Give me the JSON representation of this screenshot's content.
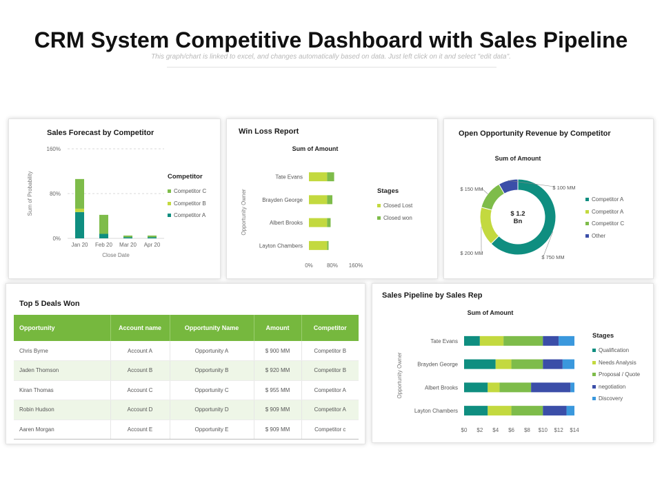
{
  "header": {
    "title": "CRM System Competitive Dashboard with Sales Pipeline",
    "subtitle": "This graph/chart is linked to excel, and changes automatically based on data. Just left click on it and select \"edit data\"."
  },
  "colors": {
    "dark_teal": "#0f8e80",
    "lime": "#c3d93f",
    "green": "#7ebc4a",
    "navy": "#3b4ea8",
    "blue": "#3a98dd",
    "table_header": "#76b83e"
  },
  "panels": {
    "forecast": {
      "title": "Sales Forecast by Competitor"
    },
    "winloss": {
      "title": "Win Loss Report"
    },
    "revenue": {
      "title": "Open Opportunity Revenue by Competitor"
    },
    "deals": {
      "title": "Top 5 Deals Won"
    },
    "pipeline": {
      "title": "Sales Pipeline by Sales Rep"
    }
  },
  "deals_table": {
    "headers": [
      "Opportunity",
      "Account name",
      "Opportunity Name",
      "Amount",
      "Competitor"
    ],
    "rows": [
      [
        "Chris Byrne",
        "Account A",
        "Opportunity A",
        "$ 900 MM",
        "Competitor B"
      ],
      [
        "Jaden Thomson",
        "Account B",
        "Opportunity B",
        "$ 920 MM",
        "Competitor B"
      ],
      [
        "Kiran Thomas",
        "Account C",
        "Opportunity C",
        "$ 955 MM",
        "Competitor A"
      ],
      [
        "Robin Hudson",
        "Account D",
        "Opportunity D",
        "$ 909 MM",
        "Competitor A"
      ],
      [
        "Aaren Morgan",
        "Account E",
        "Opportunity E",
        "$ 909 MM",
        "Competitor c"
      ]
    ]
  },
  "chart_data": [
    {
      "type": "bar",
      "stacked": true,
      "orientation": "vertical",
      "categories": [
        "Jan 20",
        "Feb 20",
        "Mar 20",
        "Apr 20"
      ],
      "series": [
        {
          "name": "Competitor A",
          "color": "#0f8e80",
          "values": [
            47,
            8,
            2,
            2
          ]
        },
        {
          "name": "Competitor B",
          "color": "#c3d93f",
          "values": [
            6,
            0,
            0,
            0
          ]
        },
        {
          "name": "Competitor C",
          "color": "#7ebc4a",
          "values": [
            53,
            34,
            3,
            3
          ]
        }
      ],
      "legend_order": [
        "Competitor C",
        "Competitor B",
        "Competitor A"
      ],
      "ylim": [
        0,
        160
      ],
      "yticks": [
        "0%",
        "80%",
        "160%"
      ],
      "ylabel": "Sum of Probability",
      "xlabel": "Close Date",
      "legend_title": "Competitor",
      "legend_position": "right",
      "grid": "dashed horizontal"
    },
    {
      "type": "bar",
      "stacked": true,
      "orientation": "horizontal",
      "chart_title": "Sum of Amount",
      "categories": [
        "Tate Evans",
        "Brayden George",
        "Albert Brooks",
        "Layton Chambers"
      ],
      "series": [
        {
          "name": "Closed Lost",
          "color": "#c3d93f",
          "values": [
            62,
            62,
            62,
            62
          ]
        },
        {
          "name": "Closed won",
          "color": "#7ebc4a",
          "values": [
            24,
            18,
            12,
            5
          ]
        }
      ],
      "xlim": [
        0,
        160
      ],
      "xticks": [
        "0%",
        "80%",
        "160%"
      ],
      "ylabel": "Opportunity Owner",
      "legend_title": "Stages",
      "legend_position": "right",
      "grid": false
    },
    {
      "type": "pie",
      "donut": true,
      "chart_title": "Sum of Amount",
      "center_label": "$ 1.2\nBn",
      "slices": [
        {
          "name": "Competitor A",
          "value": 750,
          "label": "$ 750 MM",
          "color": "#0f8e80"
        },
        {
          "name": "Competitor A",
          "value": 200,
          "label": "$ 200 MM",
          "color": "#c3d93f"
        },
        {
          "name": "Competitor C",
          "value": 150,
          "label": "$ 150 MM",
          "color": "#7ebc4a"
        },
        {
          "name": "Other",
          "value": 100,
          "label": "$ 100 MM",
          "color": "#3b4ea8"
        }
      ],
      "legend_position": "right"
    },
    {
      "type": "bar",
      "stacked": true,
      "orientation": "horizontal",
      "chart_title": "Sum of Amount",
      "categories": [
        "Tate Evans",
        "Brayden George",
        "Albert Brooks",
        "Layton Chambers"
      ],
      "series": [
        {
          "name": "Qualification",
          "color": "#0f8e80",
          "values": [
            2,
            4,
            3,
            3
          ]
        },
        {
          "name": "Needs Analysis",
          "color": "#c3d93f",
          "values": [
            3,
            2,
            1.5,
            3
          ]
        },
        {
          "name": "Proposal / Quote",
          "color": "#7ebc4a",
          "values": [
            5,
            4,
            4,
            4
          ]
        },
        {
          "name": "negotiation",
          "color": "#3b4ea8",
          "values": [
            2,
            2.5,
            5,
            3
          ]
        },
        {
          "name": "Discovery",
          "color": "#3a98dd",
          "values": [
            2,
            1.5,
            0.5,
            1
          ]
        }
      ],
      "xlim": [
        0,
        14
      ],
      "xticks": [
        "$0",
        "$2",
        "$4",
        "$6",
        "$8",
        "$10",
        "$12",
        "$14"
      ],
      "ylabel": "Opportunity Owner",
      "legend_title": "Stages",
      "legend_position": "right",
      "grid": false
    }
  ]
}
